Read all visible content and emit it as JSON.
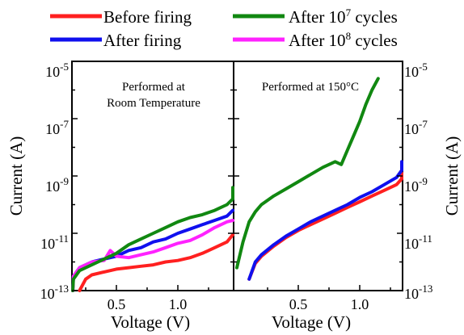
{
  "legend": [
    {
      "name": "Before firing",
      "color": "#ff2020"
    },
    {
      "name": "After firing",
      "color": "#1010ee"
    },
    {
      "name_base": "After 10",
      "name_exp": "7",
      "name_tail": " cycles",
      "color": "#118811"
    },
    {
      "name_base": "After 10",
      "name_exp": "8",
      "name_tail": " cycles",
      "color": "#ff22ff"
    }
  ],
  "axes": {
    "ylabel_left": "Current (A)",
    "ylabel_right": "Current (A)",
    "xlabel_left": "Voltage (V)",
    "xlabel_right": "Voltage (V)",
    "y_ticks": [
      {
        "base": "10",
        "exp": "-5"
      },
      {
        "base": "10",
        "exp": "-7"
      },
      {
        "base": "10",
        "exp": "-9"
      },
      {
        "base": "10",
        "exp": "-11"
      },
      {
        "base": "10",
        "exp": "-13"
      }
    ],
    "x_ticks": [
      "0.5",
      "1.0"
    ]
  },
  "chart_data": [
    {
      "type": "line",
      "panel": "left",
      "annotation": [
        "Performed at",
        "Room Temperature"
      ],
      "xlabel": "Voltage (V)",
      "ylabel": "Current (A)",
      "xlim": [
        0.0,
        1.5
      ],
      "ylim_log10": [
        -13,
        -5
      ],
      "y_scale": "log",
      "grid": false,
      "series": [
        {
          "name": "Before firing",
          "color": "#ff2020",
          "x": [
            0.2,
            0.25,
            0.3,
            0.4,
            0.5,
            0.6,
            0.7,
            0.8,
            0.9,
            1.0,
            1.1,
            1.2,
            1.3,
            1.4,
            1.5
          ],
          "log10_y": [
            -13.0,
            -12.6,
            -12.45,
            -12.35,
            -12.25,
            -12.2,
            -12.15,
            -12.1,
            -12.0,
            -11.95,
            -11.85,
            -11.7,
            -11.5,
            -11.3,
            -11.05
          ]
        },
        {
          "name": "After firing",
          "color": "#1010ee",
          "x": [
            0.1,
            0.15,
            0.2,
            0.3,
            0.4,
            0.5,
            0.6,
            0.7,
            0.8,
            0.9,
            1.0,
            1.1,
            1.2,
            1.3,
            1.4,
            1.5
          ],
          "log10_y": [
            -13.0,
            -12.5,
            -12.2,
            -12.0,
            -11.9,
            -11.8,
            -11.6,
            -11.5,
            -11.3,
            -11.2,
            -11.0,
            -10.85,
            -10.7,
            -10.55,
            -10.4,
            -10.2
          ]
        },
        {
          "name": "After 10^7 cycles",
          "color": "#118811",
          "x": [
            0.1,
            0.15,
            0.2,
            0.3,
            0.4,
            0.5,
            0.6,
            0.7,
            0.8,
            0.9,
            1.0,
            1.1,
            1.2,
            1.3,
            1.4,
            1.45,
            1.5
          ],
          "log10_y": [
            -13.0,
            -12.6,
            -12.3,
            -12.1,
            -11.9,
            -11.7,
            -11.4,
            -11.2,
            -11.0,
            -10.8,
            -10.6,
            -10.45,
            -10.35,
            -10.2,
            -10.0,
            -9.8,
            -9.4
          ]
        },
        {
          "name": "After 10^8 cycles",
          "color": "#ff22ff",
          "x": [
            0.1,
            0.15,
            0.2,
            0.3,
            0.4,
            0.45,
            0.5,
            0.6,
            0.7,
            0.8,
            0.9,
            1.0,
            1.1,
            1.2,
            1.3,
            1.4,
            1.5
          ],
          "log10_y": [
            -13.0,
            -12.5,
            -12.2,
            -12.0,
            -11.95,
            -11.6,
            -11.8,
            -11.85,
            -11.75,
            -11.65,
            -11.5,
            -11.35,
            -11.25,
            -11.05,
            -10.8,
            -10.6,
            -10.55
          ]
        }
      ]
    },
    {
      "type": "line",
      "panel": "right",
      "annotation": [
        "Performed at 150°C"
      ],
      "xlabel": "Voltage (V)",
      "ylabel": "Current (A)",
      "xlim": [
        0.0,
        1.5
      ],
      "ylim_log10": [
        -13,
        -5
      ],
      "y_scale": "log",
      "grid": false,
      "series": [
        {
          "name": "Before firing",
          "color": "#ff2020",
          "x": [
            0.1,
            0.15,
            0.2,
            0.3,
            0.4,
            0.5,
            0.6,
            0.7,
            0.8,
            0.9,
            1.0,
            1.1,
            1.2,
            1.3,
            1.4,
            1.5
          ],
          "log10_y": [
            -12.6,
            -12.05,
            -11.8,
            -11.45,
            -11.15,
            -10.9,
            -10.7,
            -10.5,
            -10.3,
            -10.1,
            -9.9,
            -9.7,
            -9.5,
            -9.3,
            -9.1,
            -8.9
          ]
        },
        {
          "name": "After firing",
          "color": "#1010ee",
          "x": [
            0.1,
            0.15,
            0.2,
            0.3,
            0.4,
            0.5,
            0.6,
            0.7,
            0.8,
            0.9,
            1.0,
            1.1,
            1.2,
            1.3,
            1.4,
            1.5
          ],
          "log10_y": [
            -12.6,
            -12.0,
            -11.75,
            -11.4,
            -11.1,
            -10.85,
            -10.6,
            -10.4,
            -10.2,
            -10.0,
            -9.75,
            -9.55,
            -9.3,
            -9.05,
            -8.8,
            -8.5
          ]
        },
        {
          "name": "After 10^7 cycles",
          "color": "#118811",
          "x": [
            0.0,
            0.05,
            0.1,
            0.15,
            0.2,
            0.3,
            0.4,
            0.5,
            0.6,
            0.7,
            0.8,
            0.85,
            0.9,
            0.95,
            1.0,
            1.05,
            1.1,
            1.15
          ],
          "log10_y": [
            -12.2,
            -11.3,
            -10.6,
            -10.25,
            -10.0,
            -9.7,
            -9.45,
            -9.2,
            -8.95,
            -8.7,
            -8.5,
            -8.6,
            -8.1,
            -7.6,
            -7.1,
            -6.5,
            -6.0,
            -5.6
          ]
        }
      ]
    }
  ]
}
